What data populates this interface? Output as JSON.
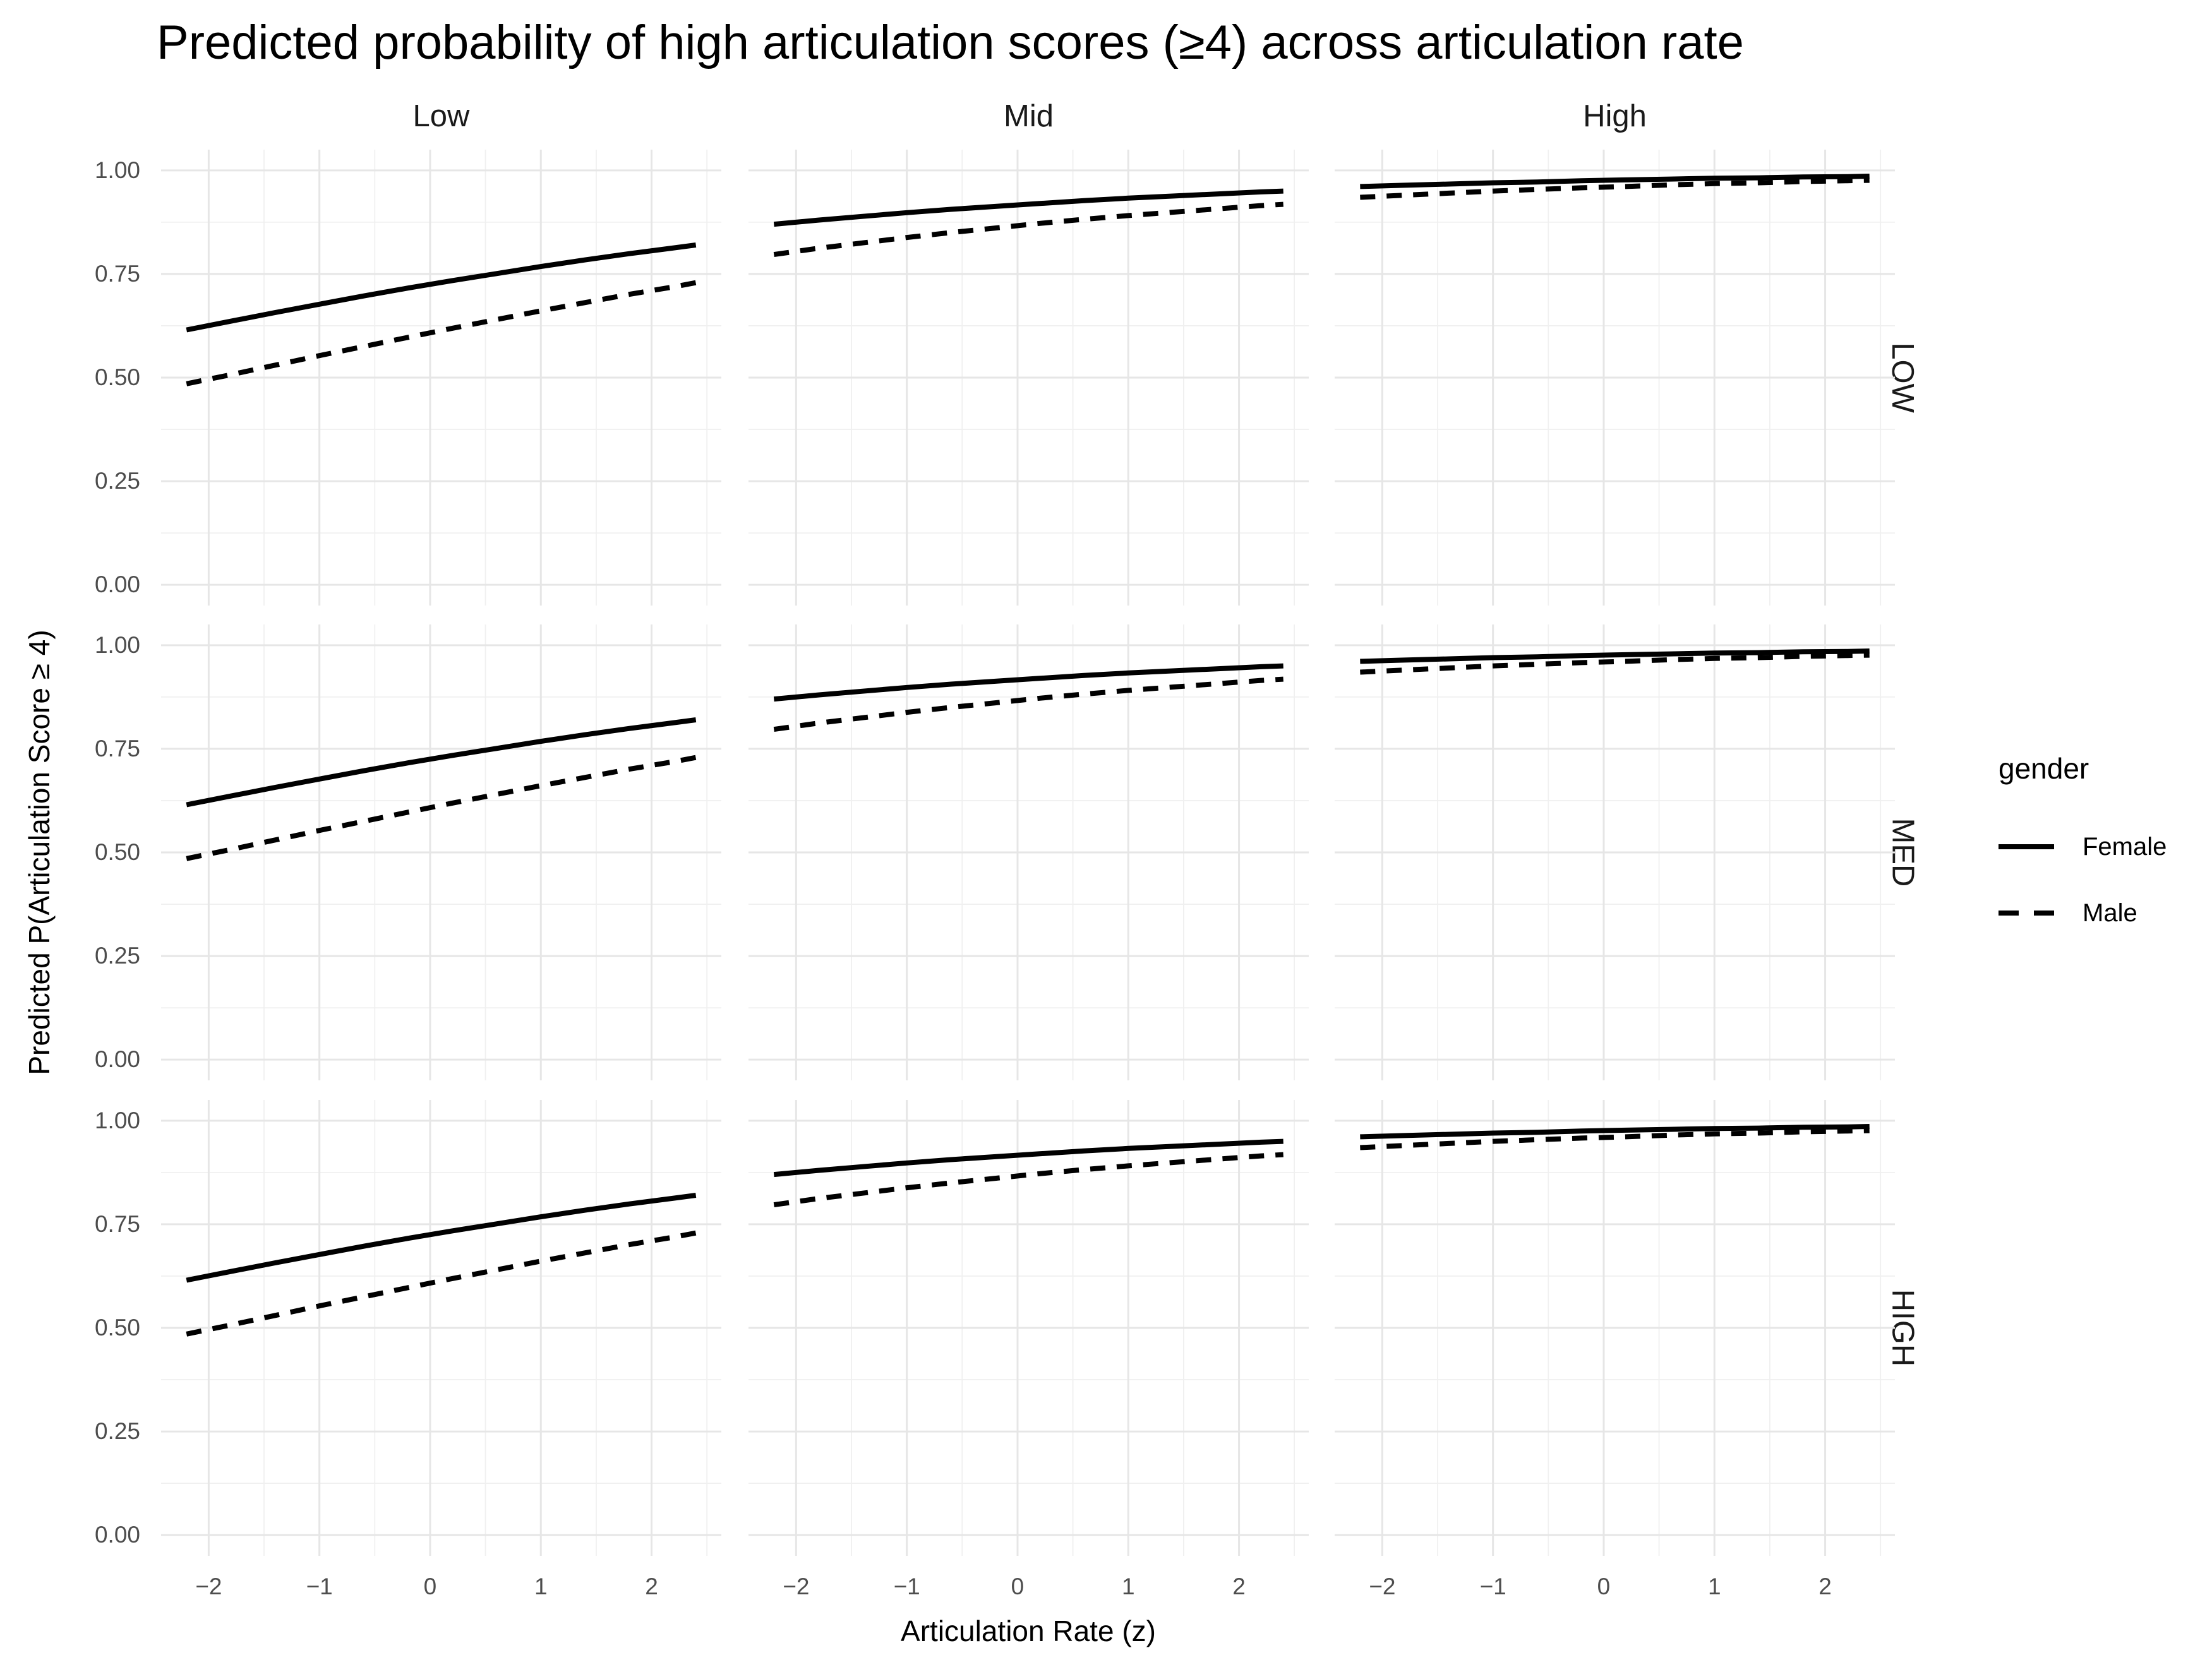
{
  "title": "Predicted probability of high articulation scores (≥4) across articulation rate",
  "axes": {
    "x_title": "Articulation Rate (z)",
    "y_title": "Predicted P(Articulation Score ≥ 4)"
  },
  "facets": {
    "col_labels": [
      "Low",
      "Mid",
      "High"
    ],
    "row_labels": [
      "LOW",
      "MED",
      "HIGH"
    ]
  },
  "legend": {
    "title": "gender",
    "entries": [
      {
        "label": "Female",
        "linetype": "solid"
      },
      {
        "label": "Male",
        "linetype": "dashed"
      }
    ]
  },
  "colors": {
    "background": "#ffffff",
    "line": "#000000",
    "grid_major": "#e6e6e6",
    "grid_minor": "#f0f0f0",
    "tick_label": "#4d4d4d",
    "strip_label": "#1a1a1a"
  },
  "chart_data": {
    "type": "line",
    "title": "Predicted probability of high articulation scores (≥4) across articulation rate",
    "xlabel": "Articulation Rate (z)",
    "ylabel": "Predicted P(Articulation Score ≥ 4)",
    "facet_note": "3x3 grid: columns = pitch level (Low/Mid/High), rows = LOW/MED/HIGH; curves are identical in all three rows",
    "legend_position": "right",
    "grid": {
      "on": true,
      "x_minor": [
        -1.5,
        -0.5,
        0.5,
        1.5,
        2.5
      ],
      "y_minor": [
        0.125,
        0.375,
        0.625,
        0.875
      ]
    },
    "x_domain": [
      -2.43,
      2.63
    ],
    "y_domain": [
      -0.05,
      1.05
    ],
    "x_tick_values": [
      -2,
      -1,
      0,
      1,
      2
    ],
    "x_tick_labels": [
      "−2",
      "−1",
      "0",
      "1",
      "2"
    ],
    "y_tick_values": [
      1.0,
      0.75,
      0.5,
      0.25,
      0.0
    ],
    "y_tick_labels": [
      "1.00",
      "0.75",
      "0.50",
      "0.25",
      "0.00"
    ],
    "z": [
      -2.2,
      -1.8,
      -1.4,
      -1.0,
      -0.6,
      -0.2,
      0.2,
      0.6,
      1.0,
      1.4,
      1.8,
      2.2,
      2.4
    ],
    "rows": [
      "LOW",
      "MED",
      "HIGH"
    ],
    "columns": [
      {
        "label": "Low",
        "series": [
          {
            "name": "Female",
            "linetype": "solid",
            "p": [
              0.615,
              0.636,
              0.657,
              0.677,
              0.697,
              0.716,
              0.734,
              0.751,
              0.768,
              0.784,
              0.799,
              0.813,
              0.82
            ]
          },
          {
            "name": "Male",
            "linetype": "dashed",
            "p": [
              0.485,
              0.507,
              0.53,
              0.553,
              0.575,
              0.597,
              0.619,
              0.64,
              0.661,
              0.681,
              0.701,
              0.719,
              0.729
            ]
          }
        ]
      },
      {
        "label": "Mid",
        "series": [
          {
            "name": "Female",
            "linetype": "solid",
            "p": [
              0.87,
              0.88,
              0.889,
              0.898,
              0.906,
              0.913,
              0.92,
              0.927,
              0.933,
              0.938,
              0.943,
              0.948,
              0.95
            ]
          },
          {
            "name": "Male",
            "linetype": "dashed",
            "p": [
              0.797,
              0.812,
              0.825,
              0.838,
              0.85,
              0.861,
              0.872,
              0.882,
              0.891,
              0.899,
              0.907,
              0.915,
              0.918
            ]
          }
        ]
      },
      {
        "label": "High",
        "series": [
          {
            "name": "Female",
            "linetype": "solid",
            "p": [
              0.961,
              0.964,
              0.967,
              0.97,
              0.972,
              0.975,
              0.977,
              0.979,
              0.981,
              0.982,
              0.984,
              0.985,
              0.986
            ]
          },
          {
            "name": "Male",
            "linetype": "dashed",
            "p": [
              0.935,
              0.94,
              0.945,
              0.95,
              0.954,
              0.958,
              0.961,
              0.965,
              0.968,
              0.97,
              0.973,
              0.975,
              0.976
            ]
          }
        ]
      }
    ]
  }
}
